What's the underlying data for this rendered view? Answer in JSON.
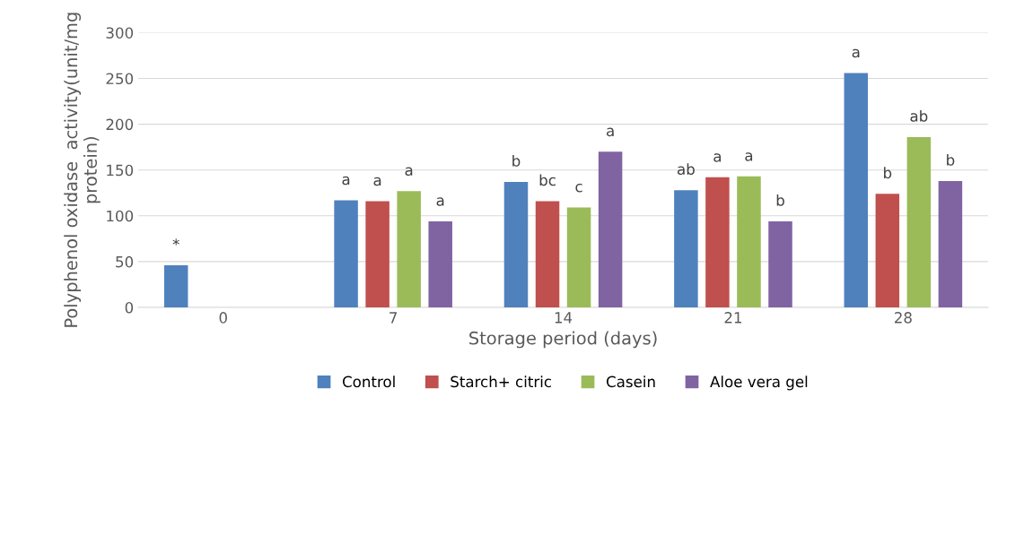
{
  "chart_data": {
    "type": "bar",
    "xlabel": "Storage period (days)",
    "ylabel": "Polyphenol oxidase  activity(unit/mg protein)",
    "categories": [
      "0",
      "7",
      "14",
      "21",
      "28"
    ],
    "ylim": [
      0,
      300
    ],
    "yticks": [
      0,
      50,
      100,
      150,
      200,
      250,
      300
    ],
    "grid": "y",
    "legend": "bottom",
    "series": [
      {
        "name": "Control",
        "color": "#4f81bd",
        "values": [
          46,
          117,
          137,
          128,
          256
        ],
        "value_labels": [
          "*",
          "a",
          "b",
          "ab",
          "a"
        ]
      },
      {
        "name": "Starch+ citric",
        "color": "#c0504d",
        "values": [
          null,
          116,
          116,
          142,
          124
        ],
        "value_labels": [
          null,
          "a",
          "bc",
          "a",
          "b"
        ]
      },
      {
        "name": "Casein",
        "color": "#9bbb59",
        "values": [
          null,
          127,
          109,
          143,
          186
        ],
        "value_labels": [
          null,
          "a",
          "c",
          "a",
          "ab"
        ]
      },
      {
        "name": "Aloe vera gel",
        "color": "#8064a2",
        "values": [
          null,
          94,
          170,
          94,
          138
        ],
        "value_labels": [
          null,
          "a",
          "a",
          "b",
          "b"
        ]
      }
    ]
  }
}
